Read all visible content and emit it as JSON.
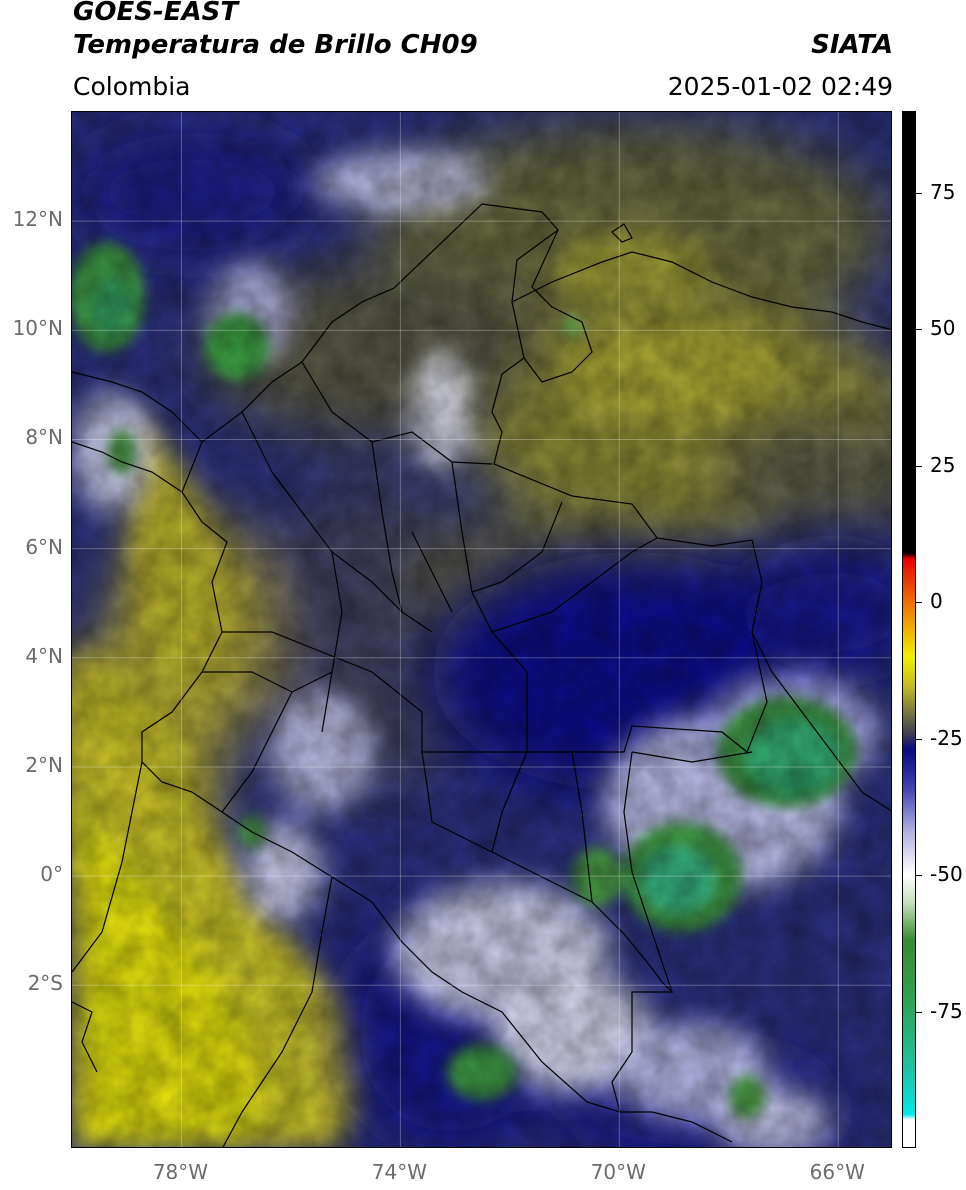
{
  "header": {
    "title_line1": "GOES-EAST",
    "title_line2": "Temperatura de Brillo CH09",
    "brand": "SIATA",
    "region": "Colombia",
    "timestamp": "2025-01-02 02:49"
  },
  "map": {
    "lon_range": [
      -80.0,
      -65.0
    ],
    "lat_range": [
      -5.0,
      14.0
    ],
    "grid": true,
    "lat_ticks": [
      {
        "value": 12,
        "label": "12°N"
      },
      {
        "value": 10,
        "label": "10°N"
      },
      {
        "value": 8,
        "label": "8°N"
      },
      {
        "value": 6,
        "label": "6°N"
      },
      {
        "value": 4,
        "label": "4°N"
      },
      {
        "value": 2,
        "label": "2°N"
      },
      {
        "value": 0,
        "label": "0°"
      },
      {
        "value": -2,
        "label": "2°S"
      }
    ],
    "lon_ticks": [
      {
        "value": -78,
        "label": "78°W"
      },
      {
        "value": -74,
        "label": "74°W"
      },
      {
        "value": -70,
        "label": "70°W"
      },
      {
        "value": -66,
        "label": "66°W"
      }
    ]
  },
  "colorbar": {
    "range": [
      -100,
      90
    ],
    "ticks": [
      {
        "value": 75,
        "label": "75"
      },
      {
        "value": 50,
        "label": "50"
      },
      {
        "value": 25,
        "label": "25"
      },
      {
        "value": 0,
        "label": "0"
      },
      {
        "value": -25,
        "label": "-25"
      },
      {
        "value": -50,
        "label": "-50"
      },
      {
        "value": -75,
        "label": "-75"
      }
    ],
    "stops": [
      {
        "value": -100,
        "color": "#ffffff"
      },
      {
        "value": -95,
        "color": "#ffffff"
      },
      {
        "value": -94,
        "color": "#00e8e8"
      },
      {
        "value": -85,
        "color": "#20c0a0"
      },
      {
        "value": -72,
        "color": "#30a050"
      },
      {
        "value": -62,
        "color": "#3a8a30"
      },
      {
        "value": -55,
        "color": "#c8e0c0"
      },
      {
        "value": -50,
        "color": "#ffffff"
      },
      {
        "value": -42,
        "color": "#b0b0e0"
      },
      {
        "value": -34,
        "color": "#4040b0"
      },
      {
        "value": -27,
        "color": "#0a0a80"
      },
      {
        "value": -24,
        "color": "#404050"
      },
      {
        "value": -20,
        "color": "#7a7a40"
      },
      {
        "value": -15,
        "color": "#c8c020"
      },
      {
        "value": -10,
        "color": "#f0f000"
      },
      {
        "value": -5,
        "color": "#f0b000"
      },
      {
        "value": 0,
        "color": "#f07000"
      },
      {
        "value": 8,
        "color": "#e80000"
      },
      {
        "value": 9,
        "color": "#000000"
      },
      {
        "value": 90,
        "color": "#000000"
      }
    ]
  }
}
